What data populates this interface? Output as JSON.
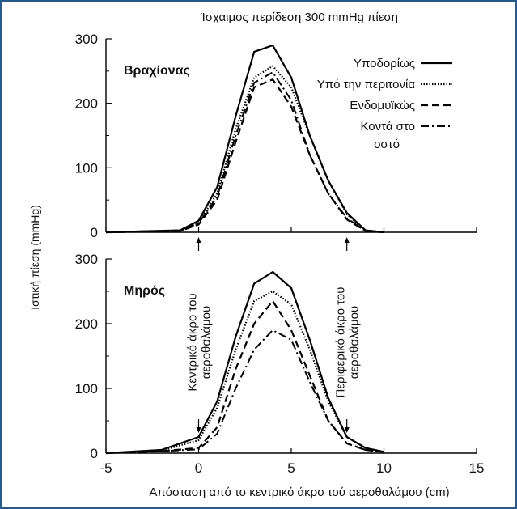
{
  "figure": {
    "title": "Ίσχαιμος περίδεση 300 mmHg πίεση",
    "xlabel": "Απόσταση από το κεντρικό άκρο τού αεροθαλάμου (cm)",
    "ylabel": "Ιστική πίεση (mmHg)",
    "border_color": "#2a5a8a"
  },
  "chart_data": [
    {
      "type": "line",
      "panel": "top",
      "panel_label": "Βραχίονας",
      "xlim": [
        -5,
        15
      ],
      "ylim": [
        0,
        300
      ],
      "xticks": [],
      "yticks": [
        0,
        100,
        200,
        300
      ],
      "legend_position": "top-right",
      "series": [
        {
          "name": "Υποδορίως",
          "style": "solid",
          "points": [
            [
              -5,
              0
            ],
            [
              -1,
              3
            ],
            [
              0,
              18
            ],
            [
              1,
              70
            ],
            [
              2,
              180
            ],
            [
              3,
              280
            ],
            [
              4,
              290
            ],
            [
              5,
              240
            ],
            [
              6,
              150
            ],
            [
              7,
              80
            ],
            [
              8,
              30
            ],
            [
              9,
              3
            ],
            [
              10,
              0
            ]
          ]
        },
        {
          "name": "Υπό την περιτονία",
          "style": "dotted",
          "points": [
            [
              -5,
              0
            ],
            [
              -1,
              3
            ],
            [
              0,
              15
            ],
            [
              1,
              60
            ],
            [
              2,
              160
            ],
            [
              3,
              240
            ],
            [
              4,
              258
            ],
            [
              5,
              225
            ],
            [
              6,
              150
            ],
            [
              7,
              80
            ],
            [
              8,
              28
            ],
            [
              9,
              3
            ],
            [
              10,
              0
            ]
          ]
        },
        {
          "name": "Ενδομυϊκώς",
          "style": "dashed",
          "points": [
            [
              -5,
              0
            ],
            [
              -1,
              2
            ],
            [
              0,
              12
            ],
            [
              1,
              50
            ],
            [
              2,
              140
            ],
            [
              3,
              225
            ],
            [
              4,
              237
            ],
            [
              5,
              195
            ],
            [
              6,
              120
            ],
            [
              7,
              60
            ],
            [
              8,
              20
            ],
            [
              9,
              2
            ],
            [
              10,
              0
            ]
          ]
        },
        {
          "name": "Κοντά στο οστό",
          "style": "dashdot",
          "points": [
            [
              -5,
              0
            ],
            [
              -1,
              2
            ],
            [
              0,
              14
            ],
            [
              1,
              55
            ],
            [
              2,
              150
            ],
            [
              3,
              232
            ],
            [
              4,
              248
            ],
            [
              5,
              205
            ],
            [
              6,
              120
            ],
            [
              7,
              60
            ],
            [
              8,
              22
            ],
            [
              9,
              2
            ],
            [
              10,
              0
            ]
          ]
        }
      ]
    },
    {
      "type": "line",
      "panel": "bottom",
      "panel_label": "Μηρός",
      "xlim": [
        -5,
        15
      ],
      "ylim": [
        0,
        300
      ],
      "xticks": [
        -5,
        0,
        5,
        10,
        15
      ],
      "yticks": [
        0,
        100,
        200,
        300
      ],
      "series": [
        {
          "name": "Υποδορίως",
          "style": "solid",
          "points": [
            [
              -5,
              0
            ],
            [
              -2,
              5
            ],
            [
              0,
              25
            ],
            [
              1,
              80
            ],
            [
              2,
              180
            ],
            [
              3,
              262
            ],
            [
              4,
              280
            ],
            [
              5,
              255
            ],
            [
              6,
              175
            ],
            [
              7,
              85
            ],
            [
              8,
              25
            ],
            [
              9,
              8
            ],
            [
              10,
              2
            ]
          ]
        },
        {
          "name": "Υπό την περιτονία",
          "style": "dotted",
          "points": [
            [
              -5,
              0
            ],
            [
              -2,
              4
            ],
            [
              0,
              20
            ],
            [
              1,
              70
            ],
            [
              2,
              160
            ],
            [
              3,
              235
            ],
            [
              4,
              250
            ],
            [
              5,
              230
            ],
            [
              6,
              160
            ],
            [
              7,
              80
            ],
            [
              8,
              25
            ],
            [
              9,
              8
            ],
            [
              10,
              2
            ]
          ]
        },
        {
          "name": "Ενδομυϊκώς",
          "style": "dashed",
          "points": [
            [
              -5,
              0
            ],
            [
              -2,
              3
            ],
            [
              0,
              8
            ],
            [
              1,
              40
            ],
            [
              2,
              130
            ],
            [
              3,
              200
            ],
            [
              4,
              235
            ],
            [
              5,
              190
            ],
            [
              6,
              120
            ],
            [
              7,
              50
            ],
            [
              8,
              15
            ],
            [
              9,
              5
            ],
            [
              10,
              2
            ]
          ]
        },
        {
          "name": "Κοντά στο οστό",
          "style": "dashdot",
          "points": [
            [
              -5,
              0
            ],
            [
              -2,
              3
            ],
            [
              0,
              6
            ],
            [
              1,
              30
            ],
            [
              2,
              100
            ],
            [
              3,
              160
            ],
            [
              4,
              190
            ],
            [
              5,
              175
            ],
            [
              6,
              110
            ],
            [
              7,
              50
            ],
            [
              8,
              15
            ],
            [
              9,
              5
            ],
            [
              10,
              2
            ]
          ]
        }
      ]
    }
  ],
  "annotations": [
    {
      "text": "Κεντρικό άκρο του αεροθαλάμου",
      "x": 0
    },
    {
      "text": "Περιφερικό άκρο του αεροθαλάμου",
      "x": 8
    }
  ]
}
